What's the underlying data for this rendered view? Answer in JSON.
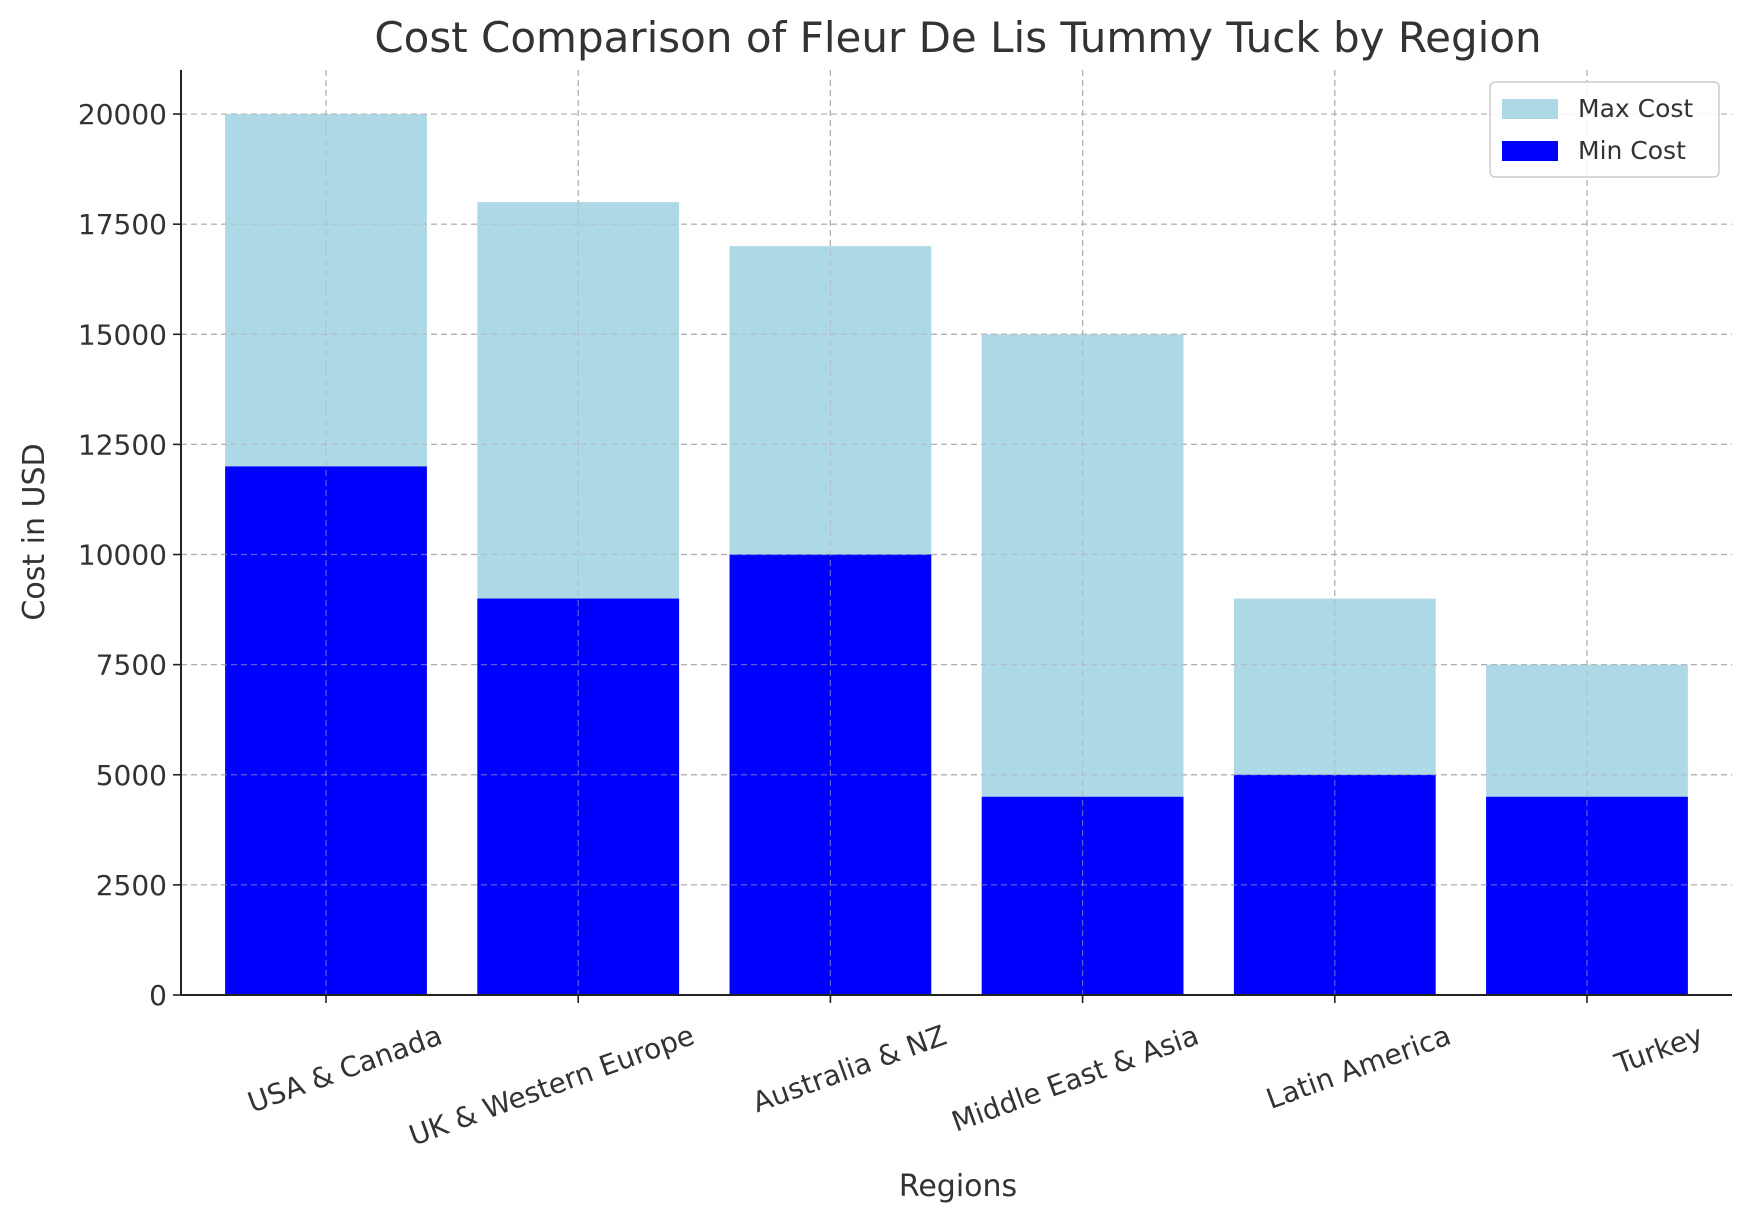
{
  "chart_data": {
    "type": "bar",
    "title": "Cost Comparison of Fleur De Lis Tummy Tuck by Region",
    "xlabel": "Regions",
    "ylabel": "Cost in USD",
    "categories": [
      "USA & Canada",
      "UK & Western Europe",
      "Australia & NZ",
      "Middle East & Asia",
      "Latin America",
      "Turkey"
    ],
    "series": [
      {
        "name": "Max Cost",
        "values": [
          20000,
          18000,
          17000,
          15000,
          9000,
          7500
        ],
        "color": "#add8e6"
      },
      {
        "name": "Min Cost",
        "values": [
          12000,
          9000,
          10000,
          4500,
          5000,
          4500
        ],
        "color": "#0000ff"
      }
    ],
    "ylim": [
      0,
      21000
    ],
    "yticks": [
      0,
      2500,
      5000,
      7500,
      10000,
      12500,
      15000,
      17500,
      20000
    ],
    "grid": true,
    "legend_position": "top-right",
    "overlay": true
  }
}
